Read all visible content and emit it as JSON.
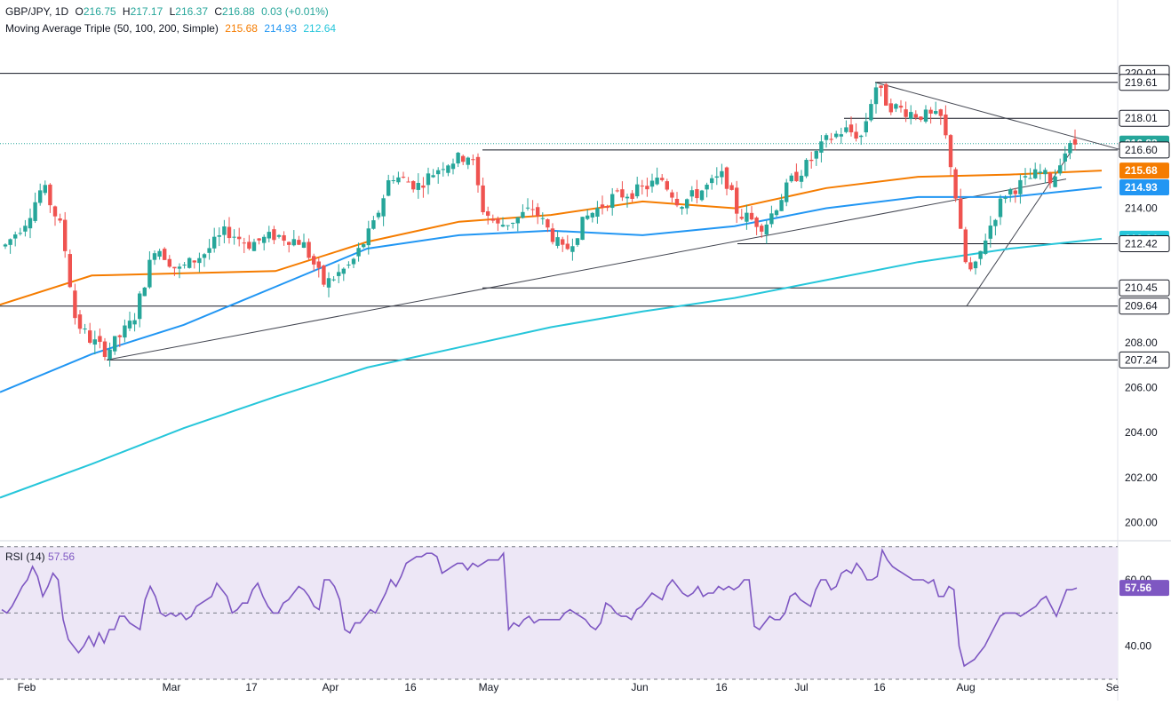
{
  "header": {
    "symbol": "GBP/JPY, 1D",
    "ohlc": {
      "o_label": "O",
      "o": "216.75",
      "h_label": "H",
      "h": "217.17",
      "l_label": "L",
      "l": "216.37",
      "c_label": "C",
      "c": "216.88",
      "change": "0.03 (+0.01%)"
    },
    "ma_title": "Moving Average Triple (50, 100, 200, Simple)",
    "ma_values": [
      "215.68",
      "214.93",
      "212.64"
    ]
  },
  "colors": {
    "up": "#26a69a",
    "down": "#ef5350",
    "ma50": "#f57c00",
    "ma100": "#2196f3",
    "ma200": "#26c6da",
    "rsi": "#7e57c2",
    "rsi_band": "#ede7f6",
    "level_line": "#131722",
    "grid": "#f0f3fa"
  },
  "rsi_panel": {
    "label": "RSI (14)",
    "value": "57.56",
    "tick_labels": [
      "60.00",
      "40.00"
    ]
  },
  "chart_data": [
    {
      "type": "candlestick",
      "title": "GBP/JPY, 1D",
      "ylim": [
        199.3,
        221.5
      ],
      "y_ticks": [
        "220.01",
        "219.61",
        "218.01",
        "216.88",
        "216.60",
        "215.68",
        "214.93",
        "214.00",
        "212.64",
        "212.42",
        "210.45",
        "209.64",
        "208.00",
        "207.24",
        "206.00",
        "204.00",
        "202.00",
        "200.00"
      ],
      "x_ticks": [
        "Feb",
        "Mar",
        "17",
        "Apr",
        "16",
        "May",
        "Jun",
        "16",
        "Jul",
        "16",
        "Aug",
        "Se"
      ],
      "horizontal_levels": [
        220.01,
        219.61,
        218.01,
        216.6,
        212.42,
        210.45,
        209.64,
        207.24
      ],
      "last_close_line": 216.88,
      "series": [
        {
          "name": "50",
          "values_last": 215.68,
          "x": [
            "Jan",
            "Feb-15",
            "Mar-15",
            "Apr-15",
            "May-01",
            "May-15",
            "Jun-01",
            "Jun-15",
            "Jul-01",
            "Jul-15",
            "Aug-01",
            "Aug-15",
            "Aug-29"
          ],
          "values": [
            209.7,
            211.0,
            211.1,
            211.2,
            212.5,
            213.4,
            213.7,
            214.3,
            214.0,
            214.9,
            215.4,
            215.5,
            215.68
          ]
        },
        {
          "name": "100",
          "values_last": 214.93,
          "x": [
            "Jan",
            "Feb-15",
            "Mar-15",
            "Apr-15",
            "May-01",
            "May-15",
            "Jun-01",
            "Jun-15",
            "Jul-01",
            "Jul-15",
            "Aug-01",
            "Aug-15",
            "Aug-29"
          ],
          "values": [
            205.8,
            207.5,
            208.8,
            210.5,
            212.2,
            212.8,
            213.0,
            212.8,
            213.2,
            214.0,
            214.5,
            214.5,
            214.93
          ]
        },
        {
          "name": "200",
          "values_last": 212.64,
          "x": [
            "Jan",
            "Feb-15",
            "Mar-15",
            "Apr-15",
            "May-01",
            "May-15",
            "Jun-01",
            "Jun-15",
            "Jul-01",
            "Jul-15",
            "Aug-01",
            "Aug-15",
            "Aug-29"
          ],
          "values": [
            201.1,
            202.6,
            204.2,
            205.6,
            206.9,
            207.8,
            208.7,
            209.4,
            210.0,
            210.8,
            211.6,
            212.2,
            212.64
          ]
        }
      ]
    },
    {
      "type": "line",
      "title": "RSI (14)",
      "ylim": [
        30,
        71
      ],
      "y_ticks": [
        "60.00",
        "40.00"
      ],
      "bands": [
        70,
        50,
        30
      ],
      "series": [
        {
          "name": "RSI (14)",
          "values": [
            51,
            50,
            52,
            55,
            58,
            60,
            64,
            61,
            55,
            58,
            62,
            60,
            48,
            42,
            40,
            38,
            40,
            43,
            40,
            44,
            41,
            45,
            45,
            49,
            49,
            47,
            46,
            45,
            54,
            58,
            55,
            50,
            49,
            50,
            49,
            50,
            48,
            49,
            52,
            53,
            54,
            55,
            59,
            57,
            55,
            50,
            51,
            53,
            53,
            57,
            59,
            55,
            52,
            50,
            50,
            53,
            54,
            56,
            58,
            57,
            55,
            52,
            51,
            60,
            60,
            58,
            54,
            45,
            44,
            47,
            47,
            49,
            51,
            50,
            53,
            56,
            60,
            58,
            61,
            65,
            66,
            67,
            67,
            68,
            68,
            67,
            62,
            63,
            64,
            65,
            65,
            63,
            65,
            64,
            65,
            66,
            66,
            66,
            68,
            45,
            47,
            46,
            48,
            49,
            47,
            48,
            48,
            48,
            48,
            48,
            50,
            51,
            50,
            49,
            48,
            46,
            45,
            47,
            53,
            52,
            50,
            49,
            49,
            48,
            51,
            52,
            54,
            56,
            55,
            54,
            58,
            60,
            58,
            56,
            55,
            56,
            58,
            55,
            56,
            56,
            58,
            57,
            58,
            57,
            58,
            60,
            60,
            46,
            45,
            47,
            49,
            48,
            48,
            50,
            55,
            56,
            54,
            53,
            52,
            57,
            60,
            60,
            57,
            58,
            62,
            63,
            62,
            65,
            63,
            60,
            60,
            61,
            69,
            66,
            64,
            63,
            62,
            61,
            60,
            60,
            60,
            59,
            60,
            55,
            55,
            58,
            57,
            40,
            34,
            35,
            36,
            38,
            40,
            43,
            46,
            49,
            50,
            50,
            50,
            49,
            50,
            51,
            52,
            54,
            55,
            52,
            49,
            53,
            57,
            57,
            57.56
          ]
        }
      ]
    }
  ]
}
